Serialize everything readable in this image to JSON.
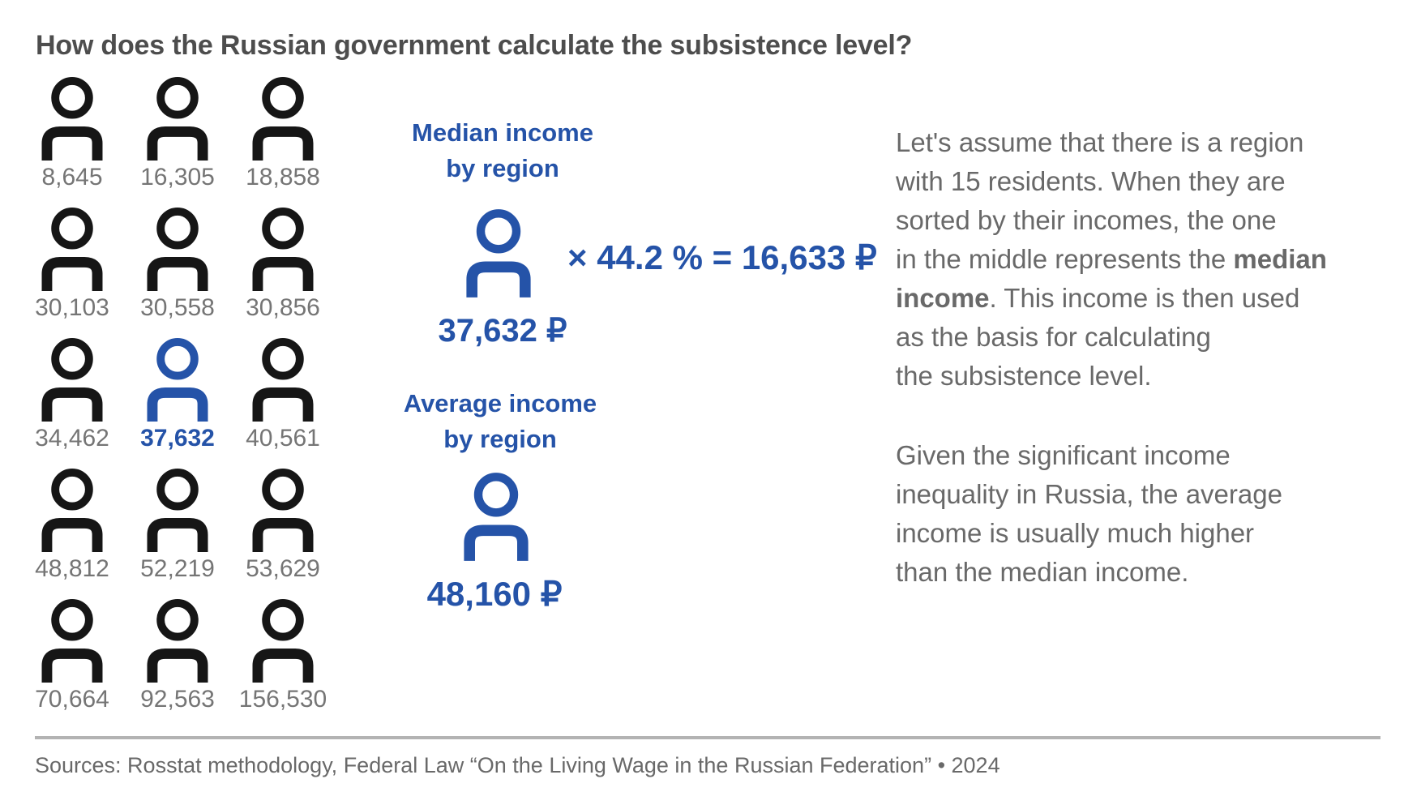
{
  "title": "How does the Russian government calculate the subsistence level?",
  "colors": {
    "accent_blue": "#2553a8",
    "icon_black": "#161616",
    "number_gray": "#757575",
    "text_gray": "#696969",
    "title_gray": "#4d4d4d",
    "divider_gray": "#b3b3b3"
  },
  "icons": {
    "resident": "person-icon",
    "median": "person-icon",
    "average": "person-icon"
  },
  "residents": {
    "count": 15,
    "median_index": 7,
    "values": [
      "8,645",
      "16,305",
      "18,858",
      "30,103",
      "30,558",
      "30,856",
      "34,462",
      "37,632",
      "40,561",
      "48,812",
      "52,219",
      "53,629",
      "70,664",
      "92,563",
      "156,530"
    ]
  },
  "median": {
    "heading_lines": [
      "Median income",
      "by region"
    ],
    "value": "37,632 ₽",
    "formula": "× 44.2 % = 16,633 ₽"
  },
  "average": {
    "heading_lines": [
      "Average income",
      "by region"
    ],
    "value": "48,160 ₽"
  },
  "explainer": {
    "p1_lines": [
      [
        {
          "t": "Let's assume that there is a region"
        }
      ],
      [
        {
          "t": "with 15 residents. When they are"
        }
      ],
      [
        {
          "t": "sorted by their incomes, the one"
        }
      ],
      [
        {
          "t": "in the middle represents the "
        },
        {
          "t": "median",
          "b": true
        }
      ],
      [
        {
          "t": "income",
          "b": true
        },
        {
          "t": ". This income is then used"
        }
      ],
      [
        {
          "t": "as the basis for calculating"
        }
      ],
      [
        {
          "t": "the subsistence level."
        }
      ]
    ],
    "p2_lines": [
      [
        {
          "t": "Given the significant income"
        }
      ],
      [
        {
          "t": "inequality in Russia, the average"
        }
      ],
      [
        {
          "t": "income is usually much higher"
        }
      ],
      [
        {
          "t": "than the median income."
        }
      ]
    ]
  },
  "footer": {
    "sources": "Sources: Rosstat methodology, Federal Law “On the Living Wage in the Russian Federation” • 2024"
  }
}
